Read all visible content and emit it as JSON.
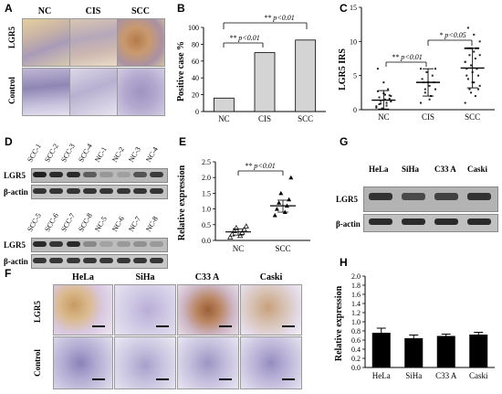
{
  "panels": {
    "A": {
      "label": "A",
      "columns": [
        "NC",
        "CIS",
        "SCC"
      ],
      "rows": [
        "LGR5",
        "Control"
      ]
    },
    "B": {
      "label": "B",
      "ylabel": "Positive case %",
      "annotations": [
        "** p<0.01",
        "** p<0.01"
      ]
    },
    "C": {
      "label": "C",
      "ylabel": "LGR5 IRS",
      "annotations": [
        "** p<0.01",
        "* p<0.05"
      ]
    },
    "D": {
      "label": "D",
      "lanes_top": [
        "SCC-1",
        "SCC-2",
        "SCC-3",
        "SCC-4",
        "NC-1",
        "NC-2",
        "NC-3",
        "NC-4"
      ],
      "lanes_bottom": [
        "SCC-5",
        "SCC-6",
        "SCC-7",
        "SCC-8",
        "NC-5",
        "NC-6",
        "NC-7",
        "NC-8"
      ],
      "rows": [
        "LGR5",
        "β-actin",
        "LGR5",
        "β-actin"
      ]
    },
    "E": {
      "label": "E",
      "ylabel": "Relative expression",
      "annotations": [
        "** p<0.01"
      ]
    },
    "F": {
      "label": "F",
      "columns": [
        "HeLa",
        "SiHa",
        "C33 A",
        "Caski"
      ],
      "rows": [
        "LGR5",
        "Control"
      ]
    },
    "G": {
      "label": "G",
      "lanes": [
        "HeLa",
        "SiHa",
        "C33 A",
        "Caski"
      ],
      "rows": [
        "LGR5",
        "β-actin"
      ]
    },
    "H": {
      "label": "H",
      "ylabel": "Relative expression"
    }
  },
  "chart_data": [
    {
      "panel": "B",
      "type": "bar",
      "categories": [
        "NC",
        "CIS",
        "SCC"
      ],
      "values": [
        16,
        70,
        85
      ],
      "ylabel": "Positive case %",
      "ylim": [
        0,
        100
      ],
      "yticks": [
        0,
        20,
        40,
        60,
        80,
        100
      ],
      "color": "#d4d4d4"
    },
    {
      "panel": "C",
      "type": "scatter",
      "categories": [
        "NC",
        "CIS",
        "SCC"
      ],
      "mean": [
        1.4,
        4.0,
        6.1
      ],
      "sd_low": [
        0.1,
        2.0,
        3.2
      ],
      "sd_high": [
        2.8,
        6.0,
        9.0
      ],
      "ylabel": "LGR5 IRS",
      "ylim": [
        0,
        15
      ],
      "yticks": [
        0,
        5,
        10,
        15
      ],
      "points": [
        [
          0.3,
          0.6,
          0.9,
          1.2,
          1.5,
          1.8,
          2.1,
          2.4,
          2.7,
          3.0,
          0.2,
          0.5,
          1.0,
          1.3,
          2.0,
          2.2,
          0.8,
          1.6,
          4.0,
          6.0
        ],
        [
          1.0,
          2.0,
          2.5,
          3.0,
          3.5,
          4.0,
          4.0,
          4.0,
          4.5,
          5.0,
          5.5,
          6.0,
          2.0,
          3.0,
          6.0,
          1.5
        ],
        [
          1.0,
          2.0,
          3.0,
          3.5,
          4.0,
          4.5,
          5.0,
          5.5,
          6.0,
          6.0,
          6.5,
          7.0,
          7.5,
          8.0,
          8.0,
          8.5,
          9.0,
          9.0,
          9.0,
          9.0,
          9.0,
          9.0,
          9.0,
          9.0,
          9.0,
          10.0,
          11.0,
          12.0,
          3.0,
          4.0,
          5.0,
          6.0,
          2.5,
          7.0
        ]
      ]
    },
    {
      "panel": "E",
      "type": "scatter",
      "categories": [
        "NC",
        "SCC"
      ],
      "mean": [
        0.27,
        1.1
      ],
      "sd_low": [
        0.17,
        0.9
      ],
      "sd_high": [
        0.37,
        1.28
      ],
      "ylabel": "Relative expression",
      "ylim": [
        0,
        2.5
      ],
      "yticks": [
        0.0,
        0.5,
        1.0,
        1.5,
        2.0,
        2.5
      ],
      "points": [
        [
          0.1,
          0.15,
          0.2,
          0.25,
          0.3,
          0.35,
          0.4,
          0.45
        ],
        [
          0.8,
          0.9,
          1.0,
          1.1,
          1.2,
          1.3,
          1.5,
          2.0
        ]
      ]
    },
    {
      "panel": "H",
      "type": "bar",
      "categories": [
        "HeLa",
        "SiHa",
        "C33 A",
        "Caski"
      ],
      "values": [
        0.76,
        0.64,
        0.69,
        0.72
      ],
      "errors": [
        0.1,
        0.07,
        0.04,
        0.05
      ],
      "ylabel": "Relative expression",
      "ylim": [
        0,
        2.0
      ],
      "yticks": [
        0.0,
        0.2,
        0.4,
        0.6,
        0.8,
        1.0,
        1.2,
        1.4,
        1.6,
        1.8,
        2.0
      ],
      "color": "#000000"
    }
  ]
}
